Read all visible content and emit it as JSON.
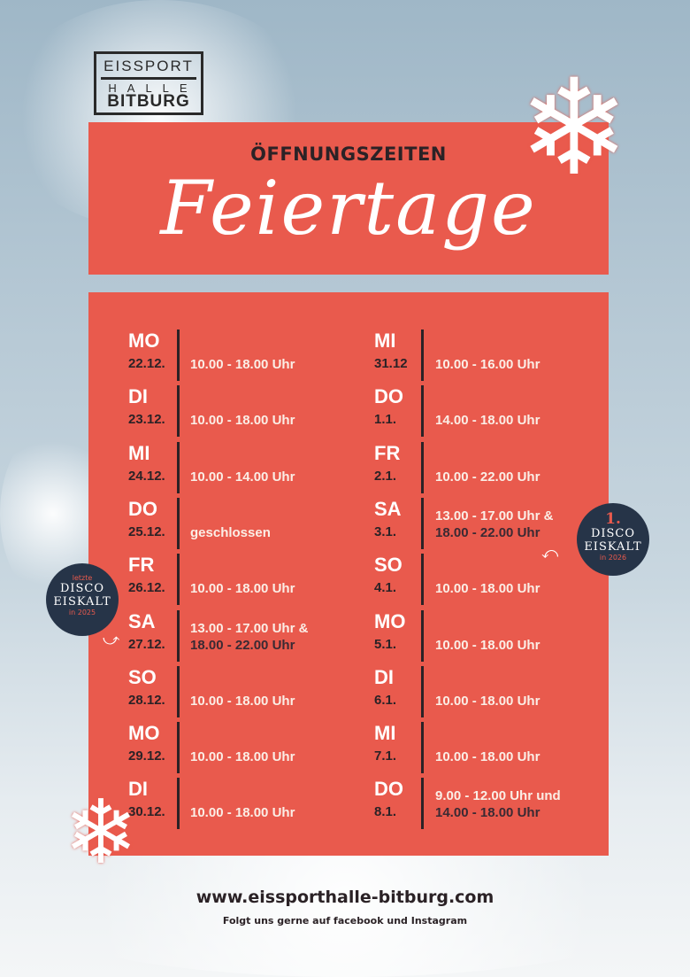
{
  "logo": {
    "line1": "EISSPORT",
    "line2": "HALLE",
    "line3": "BITBURG"
  },
  "header": {
    "subtitle": "ÖFFNUNGSZEITEN",
    "title": "Feiertage"
  },
  "left": [
    {
      "day": "MO",
      "date": "22.12.",
      "time": "10.00 - 18.00 Uhr"
    },
    {
      "day": "DI",
      "date": "23.12.",
      "time": "10.00 - 18.00 Uhr"
    },
    {
      "day": "MI",
      "date": "24.12.",
      "time": "10.00 - 14.00 Uhr"
    },
    {
      "day": "DO",
      "date": "25.12.",
      "time": "geschlossen"
    },
    {
      "day": "FR",
      "date": "26.12.",
      "time": "10.00 - 18.00 Uhr"
    },
    {
      "day": "SA",
      "date": "27.12.",
      "time": "13.00 - 17.00 Uhr &",
      "time2": "18.00 - 22.00 Uhr"
    },
    {
      "day": "SO",
      "date": "28.12.",
      "time": "10.00 - 18.00 Uhr"
    },
    {
      "day": "MO",
      "date": "29.12.",
      "time": "10.00 - 18.00 Uhr"
    },
    {
      "day": "DI",
      "date": "30.12.",
      "time": "10.00 - 18.00 Uhr"
    }
  ],
  "right": [
    {
      "day": "MI",
      "date": "31.12",
      "time": "10.00 - 16.00 Uhr"
    },
    {
      "day": "DO",
      "date": "1.1.",
      "time": "14.00 - 18.00 Uhr"
    },
    {
      "day": "FR",
      "date": "2.1.",
      "time": "10.00 - 22.00 Uhr"
    },
    {
      "day": "SA",
      "date": "3.1.",
      "time": "13.00 - 17.00 Uhr &",
      "time2": "18.00 - 22.00 Uhr"
    },
    {
      "day": "SO",
      "date": "4.1.",
      "time": "10.00 - 18.00 Uhr"
    },
    {
      "day": "MO",
      "date": "5.1.",
      "time": "10.00 - 18.00 Uhr"
    },
    {
      "day": "DI",
      "date": "6.1.",
      "time": "10.00 - 18.00 Uhr"
    },
    {
      "day": "MI",
      "date": "7.1.",
      "time": "10.00 - 18.00 Uhr"
    },
    {
      "day": "DO",
      "date": "8.1.",
      "time": "9.00 - 12.00 Uhr und",
      "time2": "14.00 - 18.00 Uhr"
    }
  ],
  "badge_left": {
    "small_top": "letzte",
    "line1": "DISCO",
    "line2": "EISKALT",
    "small_bottom": "in 2025"
  },
  "badge_right": {
    "number": "1.",
    "line1": "DISCO",
    "line2": "EISKALT",
    "small_bottom": "in 2026"
  },
  "footer": {
    "url": "www.eissporthalle-bitburg.com",
    "follow": "Folgt uns gerne auf facebook und Instagram"
  },
  "colors": {
    "panel": "#e95a4d",
    "badge": "#263448",
    "text_dark": "#2b2226"
  }
}
